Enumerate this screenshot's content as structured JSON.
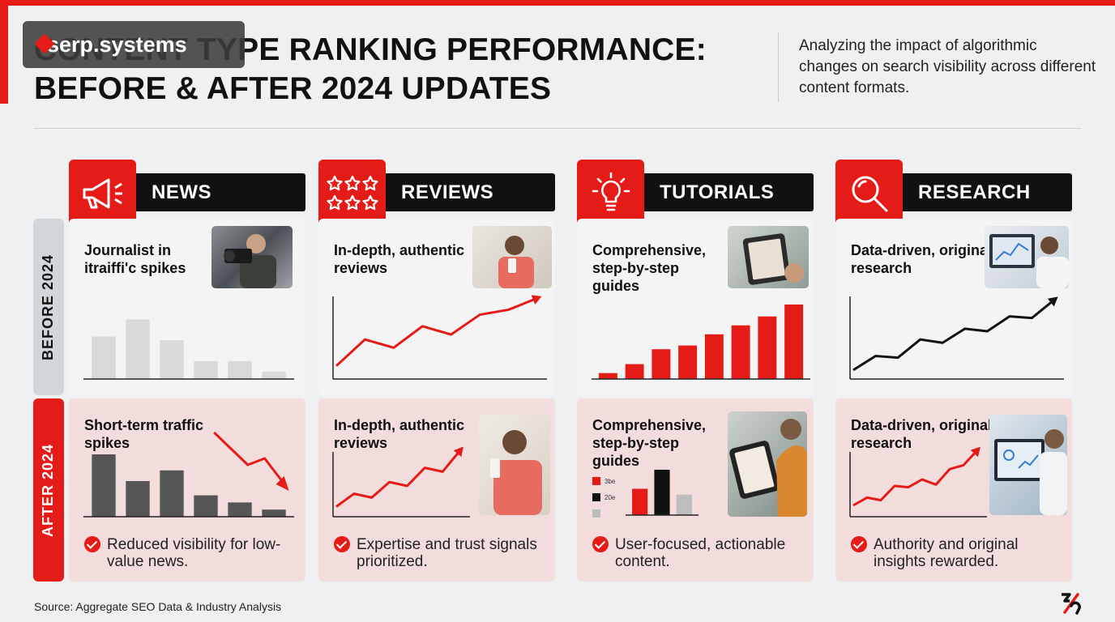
{
  "header": {
    "title_line1": "CONTENT TYPE RANKING PERFORMANCE:",
    "title_line2": "BEFORE & AFTER 2024 UPDATES",
    "subtitle": "Analyzing the impact of algorithmic changes on search visibility across different content formats.",
    "logo_text": "serp.systems"
  },
  "rows": {
    "before": "BEFORE 2024",
    "after": "AFTER 2024"
  },
  "colors": {
    "accent": "#e41b17",
    "dark": "#111111",
    "grey_bar": "#d9d9d9",
    "dark_bar": "#555555"
  },
  "columns": [
    {
      "name": "NEWS",
      "icon": "megaphone-icon",
      "before_text": "Journalist in itraiffi'c spikes",
      "after_text": "Short-term traffic spikes",
      "bullet": "Reduced visibility for low-value news."
    },
    {
      "name": "REVIEWS",
      "icon": "stars-icon",
      "before_text": "In-depth, authentic reviews",
      "after_text": "In-depth, authentic reviews",
      "bullet": "Expertise and trust signals prioritized."
    },
    {
      "name": "TUTORIALS",
      "icon": "lightbulb-icon",
      "before_text": "Comprehensive, step-by-step guides",
      "after_text": "Comprehensive, step-by-step guides",
      "bullet": "User-focused, actionable content.",
      "legend": [
        "3be",
        "20e",
        ""
      ]
    },
    {
      "name": "RESEARCH",
      "icon": "magnifier-icon",
      "before_text": "Data-driven, original research",
      "after_text": "Data-driven, original research",
      "bullet": "Authority and original insights rewarded."
    }
  ],
  "chart_data": [
    {
      "type": "bar",
      "panel": "NEWS before 2024",
      "values": [
        57,
        80,
        52,
        24,
        24,
        10
      ],
      "ylim": [
        0,
        100
      ],
      "color": "#d9d9d9"
    },
    {
      "type": "bar",
      "panel": "NEWS after 2024",
      "values": [
        70,
        40,
        52,
        24,
        16,
        8
      ],
      "ylim": [
        0,
        100
      ],
      "color": "#555555",
      "trend": "down"
    },
    {
      "type": "line",
      "panel": "REVIEWS before 2024",
      "values": [
        10,
        42,
        32,
        58,
        48,
        72,
        78,
        92
      ],
      "ylim": [
        0,
        100
      ],
      "color": "#e41b17"
    },
    {
      "type": "line",
      "panel": "REVIEWS after 2024",
      "values": [
        8,
        28,
        22,
        46,
        40,
        68,
        62,
        95
      ],
      "ylim": [
        0,
        100
      ],
      "color": "#e41b17"
    },
    {
      "type": "bar",
      "panel": "TUTORIALS before 2024",
      "values": [
        8,
        20,
        40,
        45,
        60,
        72,
        84,
        100
      ],
      "ylim": [
        0,
        100
      ],
      "color": "#e41b17"
    },
    {
      "type": "bar",
      "panel": "TUTORIALS after 2024",
      "values": [
        58,
        100,
        45
      ],
      "ylim": [
        0,
        100
      ],
      "colors": [
        "#e41b17",
        "#111111",
        "#bdbdbd"
      ]
    },
    {
      "type": "line",
      "panel": "RESEARCH before 2024",
      "values": [
        5,
        22,
        20,
        42,
        38,
        55,
        52,
        70,
        68,
        90
      ],
      "ylim": [
        0,
        100
      ],
      "color": "#111111"
    },
    {
      "type": "line",
      "panel": "RESEARCH after 2024",
      "values": [
        10,
        22,
        18,
        40,
        38,
        50,
        42,
        66,
        72,
        95
      ],
      "ylim": [
        0,
        100
      ],
      "color": "#e41b17"
    }
  ],
  "footer": {
    "source": "Source: Aggregate SEO Data & Industry Analysis"
  }
}
